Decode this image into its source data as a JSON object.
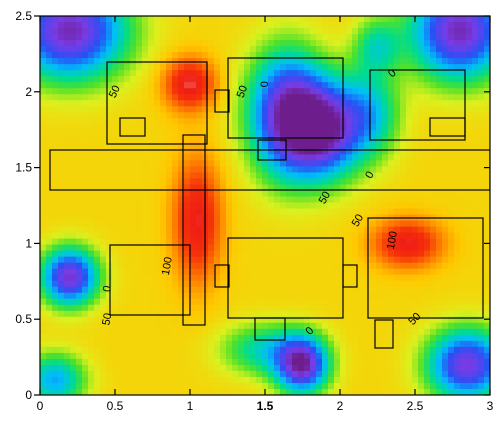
{
  "chart_data": {
    "type": "heatmap",
    "title": "",
    "xlabel": "",
    "ylabel": "",
    "xlim": [
      0,
      3
    ],
    "ylim": [
      0,
      2.5
    ],
    "grid": false,
    "legend": "none",
    "x_ticks": [
      {
        "value": 0,
        "label": "0",
        "bold": false
      },
      {
        "value": 0.5,
        "label": "0.5",
        "bold": false
      },
      {
        "value": 1,
        "label": "1",
        "bold": false
      },
      {
        "value": 1.5,
        "label": "1.5",
        "bold": true
      },
      {
        "value": 2,
        "label": "2",
        "bold": false
      },
      {
        "value": 2.5,
        "label": "2.5",
        "bold": false
      },
      {
        "value": 3,
        "label": "3",
        "bold": false
      }
    ],
    "y_ticks": [
      {
        "value": 0,
        "label": "0"
      },
      {
        "value": 0.5,
        "label": "0.5"
      },
      {
        "value": 1,
        "label": "1"
      },
      {
        "value": 1.5,
        "label": "1.5"
      },
      {
        "value": 2,
        "label": "2"
      },
      {
        "value": 2.5,
        "label": "2.5"
      }
    ],
    "value_range": [
      0,
      110
    ],
    "field": {
      "base": 72,
      "features": [
        {
          "x": 1.0,
          "y": 2.05,
          "value": 106,
          "sx": 0.12,
          "sy": 0.12
        },
        {
          "x": 1.05,
          "y": 1.15,
          "value": 104,
          "sx": 0.11,
          "sy": 0.28
        },
        {
          "x": 2.45,
          "y": 1.0,
          "value": 104,
          "sx": 0.16,
          "sy": 0.11
        },
        {
          "x": 1.65,
          "y": 1.85,
          "value": 8,
          "sx": 0.17,
          "sy": 0.28
        },
        {
          "x": 1.9,
          "y": 1.75,
          "value": 10,
          "sx": 0.17,
          "sy": 0.22
        },
        {
          "x": 0.2,
          "y": 2.4,
          "value": 5,
          "sx": 0.26,
          "sy": 0.22
        },
        {
          "x": 2.8,
          "y": 2.4,
          "value": 5,
          "sx": 0.22,
          "sy": 0.22
        },
        {
          "x": 2.25,
          "y": 2.3,
          "value": 48,
          "sx": 0.11,
          "sy": 0.13
        },
        {
          "x": 0.2,
          "y": 0.78,
          "value": 8,
          "sx": 0.13,
          "sy": 0.13
        },
        {
          "x": 1.75,
          "y": 0.2,
          "value": 6,
          "sx": 0.12,
          "sy": 0.13
        },
        {
          "x": 2.85,
          "y": 0.2,
          "value": 10,
          "sx": 0.18,
          "sy": 0.16
        },
        {
          "x": 0.1,
          "y": 0.1,
          "value": 35,
          "sx": 0.14,
          "sy": 0.12
        },
        {
          "x": 1.5,
          "y": 0.3,
          "value": 45,
          "sx": 0.2,
          "sy": 0.12
        },
        {
          "x": 2.2,
          "y": 1.85,
          "value": 42,
          "sx": 0.14,
          "sy": 0.2
        },
        {
          "x": 1.4,
          "y": 1.9,
          "value": 70,
          "sx": 0.2,
          "sy": 0.25
        }
      ]
    },
    "contour_labels": [
      {
        "text": "50",
        "x": 0.5,
        "y": 2.0,
        "rotate": -65
      },
      {
        "text": "50",
        "x": 1.35,
        "y": 2.0,
        "rotate": -70
      },
      {
        "text": "0",
        "x": 1.5,
        "y": 2.05,
        "rotate": -90
      },
      {
        "text": "0",
        "x": 2.35,
        "y": 2.12,
        "rotate": -45
      },
      {
        "text": "50",
        "x": 1.9,
        "y": 1.3,
        "rotate": -60
      },
      {
        "text": "50",
        "x": 2.12,
        "y": 1.15,
        "rotate": -60
      },
      {
        "text": "0",
        "x": 2.2,
        "y": 1.45,
        "rotate": -60
      },
      {
        "text": "100",
        "x": 2.35,
        "y": 1.02,
        "rotate": -80
      },
      {
        "text": "100",
        "x": 0.85,
        "y": 0.85,
        "rotate": -80
      },
      {
        "text": "0",
        "x": 0.45,
        "y": 0.7,
        "rotate": -80
      },
      {
        "text": "50",
        "x": 0.45,
        "y": 0.5,
        "rotate": -80
      },
      {
        "text": "0",
        "x": 1.8,
        "y": 0.42,
        "rotate": -45
      },
      {
        "text": "50",
        "x": 2.5,
        "y": 0.5,
        "rotate": -45
      }
    ]
  }
}
